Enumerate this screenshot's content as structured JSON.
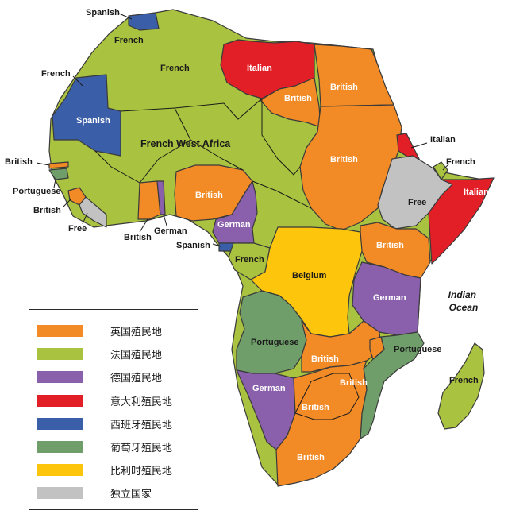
{
  "colors": {
    "british": "#f28a26",
    "french": "#a9c23f",
    "german": "#8a5fac",
    "italian": "#e21e26",
    "spanish": "#3b5ea8",
    "portuguese": "#6f9e6a",
    "belgian": "#fdc60d",
    "free": "#c2c2c2"
  },
  "labels": {
    "spanish_top": "Spanish",
    "french_morocco": "French",
    "french_algeria": "French",
    "french_left": "French",
    "spanish_sahara": "Spanish",
    "italian_libya": "Italian",
    "british_egypt": "British",
    "british_libya_se": "British",
    "french_west_africa": "French West Africa",
    "british_sudan": "British",
    "italian_eritrea": "Italian",
    "french_somaliland": "French",
    "italian_somalia": "Italian",
    "free_ethiopia": "Free",
    "british_gambia": "British",
    "portuguese_guinea": "Portuguese",
    "british_sierra_leone": "British",
    "free_liberia": "Free",
    "british_gold_coast": "British",
    "german_togo": "German",
    "british_nigeria": "British",
    "german_cameroon": "German",
    "spanish_guinea": "Spanish",
    "british_east_africa": "British",
    "french_congo": "French",
    "belgium_congo": "Belgium",
    "german_east_africa": "German",
    "indian_ocean": "Indian\nOcean",
    "portuguese_angola": "Portuguese",
    "british_rhodesia": "British",
    "portuguese_mozambique": "Portuguese",
    "british_nyasaland": "British",
    "german_sw_africa": "German",
    "british_bechuanaland": "British",
    "british_south_africa": "British",
    "french_madagascar": "French"
  },
  "legend": {
    "items": [
      {
        "label": "英国殖民地",
        "color": "#f28a26"
      },
      {
        "label": "法国殖民地",
        "color": "#a9c23f"
      },
      {
        "label": "德国殖民地",
        "color": "#8a5fac"
      },
      {
        "label": "意大利殖民地",
        "color": "#e21e26"
      },
      {
        "label": "西班牙殖民地",
        "color": "#3b5ea8"
      },
      {
        "label": "葡萄牙殖民地",
        "color": "#6f9e6a"
      },
      {
        "label": "比利时殖民地",
        "color": "#fdc60d"
      },
      {
        "label": "独立国家",
        "color": "#c2c2c2"
      }
    ]
  }
}
